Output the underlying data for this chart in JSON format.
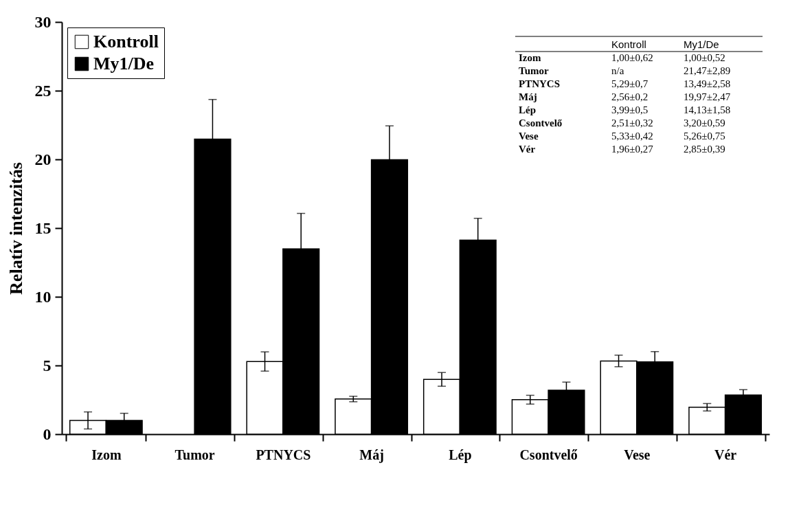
{
  "chart_data": {
    "type": "bar",
    "ylabel": "Relatív intenzitás",
    "categories": [
      "Izom",
      "Tumor",
      "PTNYCS",
      "Máj",
      "Lép",
      "Csontvelő",
      "Vese",
      "Vér"
    ],
    "series": [
      {
        "name": "Kontroll",
        "color": "#ffffff",
        "values": [
          1.0,
          null,
          5.29,
          2.56,
          3.99,
          2.51,
          5.33,
          1.96
        ],
        "errors": [
          0.62,
          null,
          0.7,
          0.2,
          0.5,
          0.32,
          0.42,
          0.27
        ]
      },
      {
        "name": "My1/De",
        "color": "#000000",
        "values": [
          1.0,
          21.47,
          13.49,
          19.97,
          14.13,
          3.2,
          5.26,
          2.85
        ],
        "errors": [
          0.52,
          2.89,
          2.58,
          2.47,
          1.58,
          0.59,
          0.75,
          0.39
        ]
      }
    ],
    "annotations": [
      "1,00±0,62",
      "1,00±0,52",
      "n/a",
      "21,47±2,89",
      "5,29±0,7",
      "13,49±2,58",
      "2,56±0,2",
      "19,97±2,47",
      "3,99±0,5",
      "14,13±1,58",
      "2,51±0,32",
      "3,20±0,59",
      "5,33±0,42",
      "5,26±0,75",
      "1,96±0,27",
      "2,85±0,39"
    ],
    "ylim": [
      0,
      30
    ],
    "yticks": [
      0,
      5,
      10,
      15,
      20,
      25,
      30
    ],
    "grid": false,
    "legend": "top left"
  }
}
